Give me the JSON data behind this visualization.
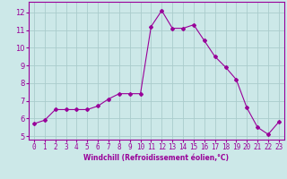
{
  "x": [
    0,
    1,
    2,
    3,
    4,
    5,
    6,
    7,
    8,
    9,
    10,
    11,
    12,
    13,
    14,
    15,
    16,
    17,
    18,
    19,
    20,
    21,
    22,
    23
  ],
  "y": [
    5.7,
    5.9,
    6.5,
    6.5,
    6.5,
    6.5,
    6.7,
    7.1,
    7.4,
    7.4,
    7.4,
    11.2,
    12.1,
    11.1,
    11.1,
    11.3,
    10.4,
    9.5,
    8.9,
    8.2,
    6.6,
    5.5,
    5.1,
    5.8
  ],
  "line_color": "#990099",
  "marker": "D",
  "marker_size": 2.0,
  "bg_color": "#cce8e8",
  "grid_color": "#aacccc",
  "xlabel": "Windchill (Refroidissement éolien,°C)",
  "ylim": [
    4.8,
    12.6
  ],
  "xlim": [
    -0.5,
    23.5
  ],
  "yticks": [
    5,
    6,
    7,
    8,
    9,
    10,
    11,
    12
  ],
  "xticks": [
    0,
    1,
    2,
    3,
    4,
    5,
    6,
    7,
    8,
    9,
    10,
    11,
    12,
    13,
    14,
    15,
    16,
    17,
    18,
    19,
    20,
    21,
    22,
    23
  ],
  "xtick_labels": [
    "0",
    "1",
    "2",
    "3",
    "4",
    "5",
    "6",
    "7",
    "8",
    "9",
    "10",
    "11",
    "12",
    "13",
    "14",
    "15",
    "16",
    "17",
    "18",
    "19",
    "20",
    "21",
    "22",
    "23"
  ],
  "label_color": "#990099",
  "tick_color": "#990099",
  "spine_color": "#990099",
  "xlabel_fontsize": 5.5,
  "tick_fontsize": 5.5,
  "ytick_fontsize": 6.0
}
